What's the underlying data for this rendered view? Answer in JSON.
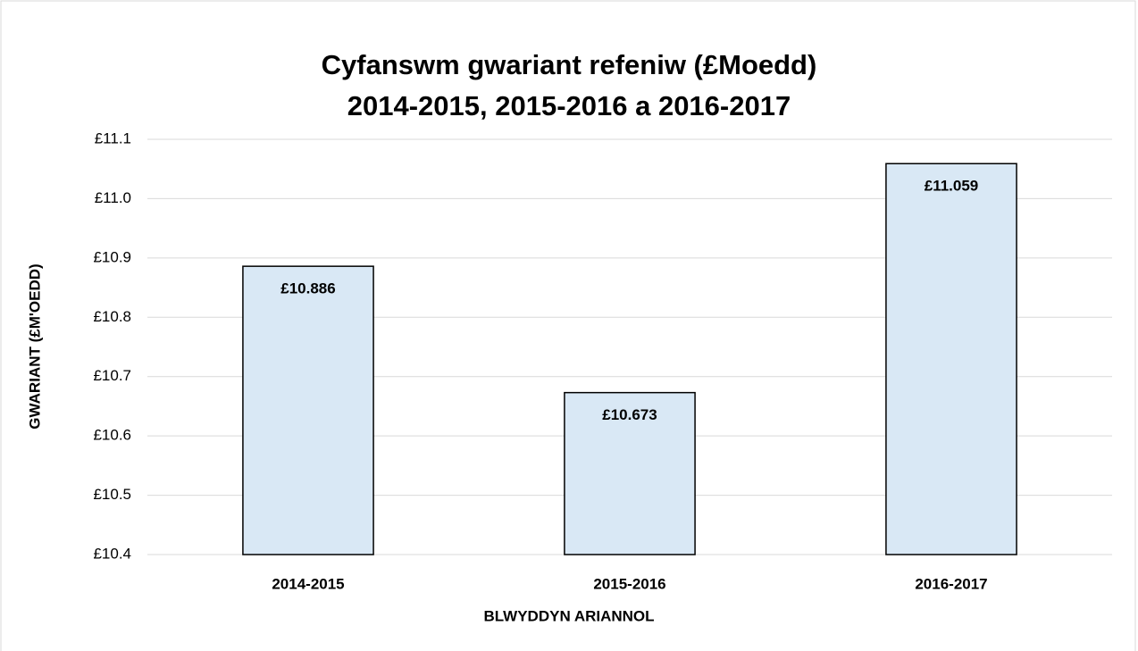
{
  "chart_data": {
    "type": "bar",
    "title": [
      "Cyfanswm gwariant refeniw (£Moedd)",
      "2014-2015, 2015-2016 a 2016-2017"
    ],
    "x_label": "BLWYDDYN ARIANNOL",
    "y_label": "GWARIANT (£M'OEDD)",
    "categories": [
      "2014-2015",
      "2015-2016",
      "2016-2017"
    ],
    "values": [
      10.886,
      10.673,
      11.059
    ],
    "value_labels": [
      "£10.886",
      "£10.673",
      "£11.059"
    ],
    "color": "#d9e8f5",
    "ylim": [
      10.4,
      11.1
    ],
    "yticks": [
      {
        "value": 10.4,
        "label": "£10.4"
      },
      {
        "value": 10.5,
        "label": "£10.5"
      },
      {
        "value": 10.6,
        "label": "£10.6"
      },
      {
        "value": 10.7,
        "label": "£10.7"
      },
      {
        "value": 10.8,
        "label": "£10.8"
      },
      {
        "value": 10.9,
        "label": "£10.9"
      },
      {
        "value": 11.0,
        "label": "£11.0"
      },
      {
        "value": 11.1,
        "label": "£11.1"
      }
    ],
    "grid": true
  }
}
